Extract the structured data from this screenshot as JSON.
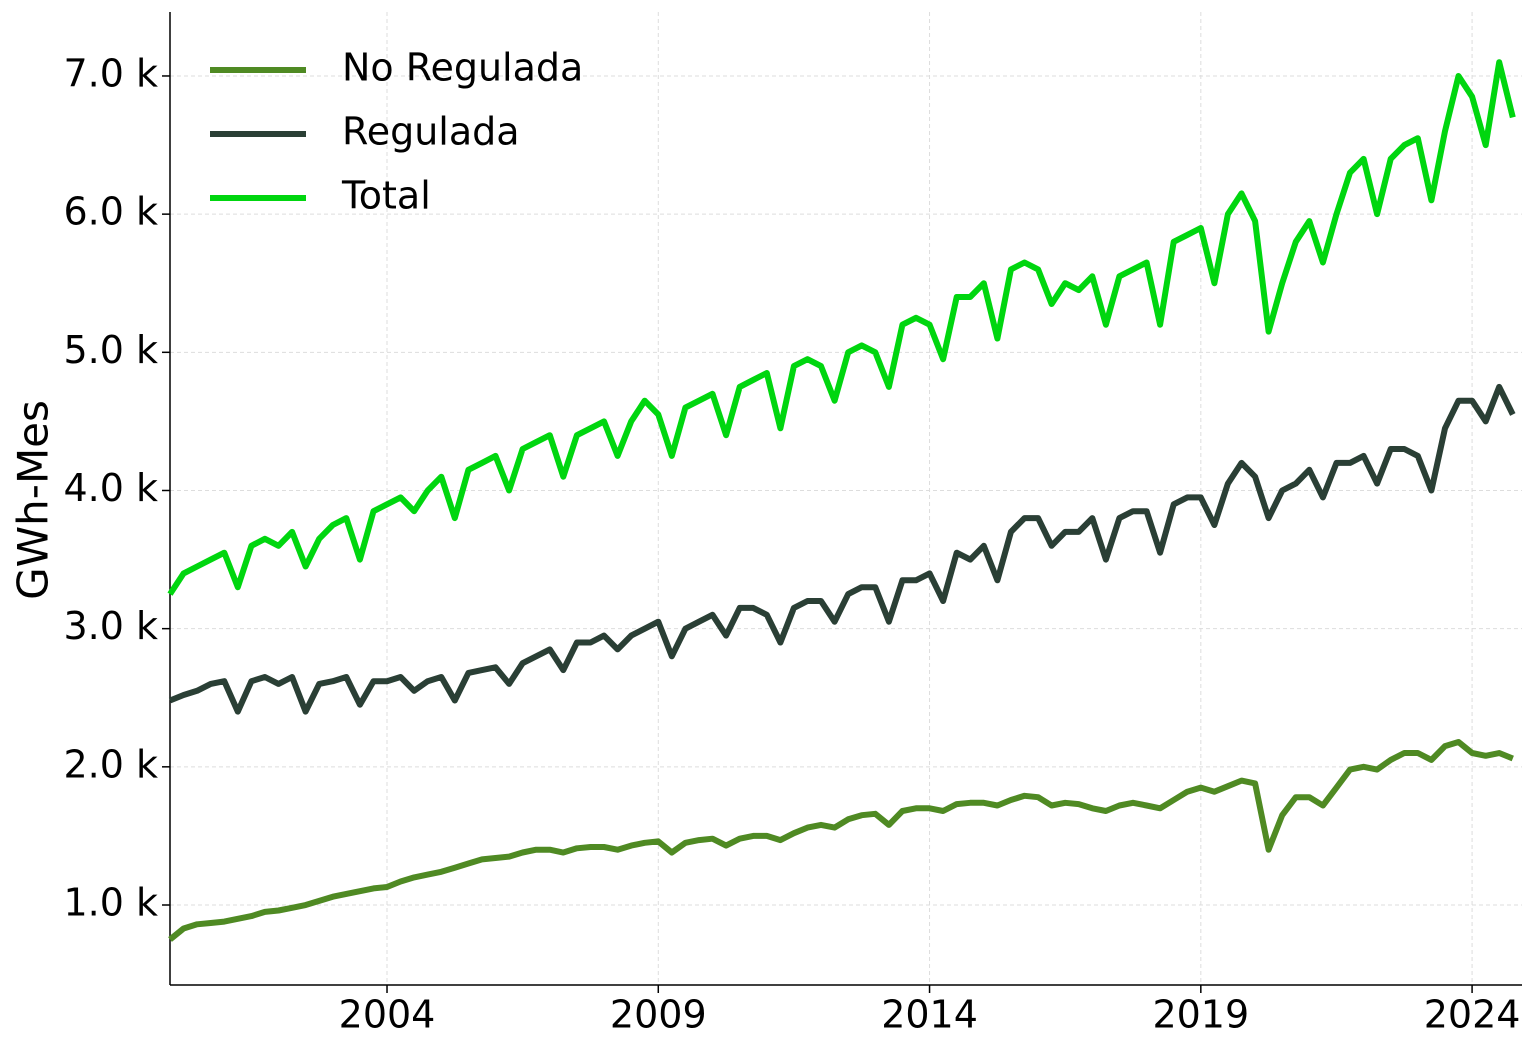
{
  "chart_data": {
    "type": "line",
    "ylabel": "GWh-Mes",
    "x": [
      2000,
      2000.25,
      2000.5,
      2000.75,
      2001,
      2001.25,
      2001.5,
      2001.75,
      2002,
      2002.25,
      2002.5,
      2002.75,
      2003,
      2003.25,
      2003.5,
      2003.75,
      2004,
      2004.25,
      2004.5,
      2004.75,
      2005,
      2005.25,
      2005.5,
      2005.75,
      2006,
      2006.25,
      2006.5,
      2006.75,
      2007,
      2007.25,
      2007.5,
      2007.75,
      2008,
      2008.25,
      2008.5,
      2008.75,
      2009,
      2009.25,
      2009.5,
      2009.75,
      2010,
      2010.25,
      2010.5,
      2010.75,
      2011,
      2011.25,
      2011.5,
      2011.75,
      2012,
      2012.25,
      2012.5,
      2012.75,
      2013,
      2013.25,
      2013.5,
      2013.75,
      2014,
      2014.25,
      2014.5,
      2014.75,
      2015,
      2015.25,
      2015.5,
      2015.75,
      2016,
      2016.25,
      2016.5,
      2016.75,
      2017,
      2017.25,
      2017.5,
      2017.75,
      2018,
      2018.25,
      2018.5,
      2018.75,
      2019,
      2019.25,
      2019.5,
      2019.75,
      2020,
      2020.25,
      2020.5,
      2020.75,
      2021,
      2021.25,
      2021.5,
      2021.75,
      2022,
      2022.25,
      2022.5,
      2022.75,
      2023,
      2023.25,
      2023.5,
      2023.75,
      2024,
      2024.25,
      2024.5,
      2024.75
    ],
    "series": [
      {
        "name": "No Regulada",
        "color": "#4f8a23",
        "values": [
          750,
          830,
          860,
          870,
          880,
          900,
          920,
          950,
          960,
          980,
          1000,
          1030,
          1060,
          1080,
          1100,
          1120,
          1130,
          1170,
          1200,
          1220,
          1240,
          1270,
          1300,
          1330,
          1340,
          1350,
          1380,
          1400,
          1400,
          1380,
          1410,
          1420,
          1420,
          1400,
          1430,
          1450,
          1460,
          1380,
          1450,
          1470,
          1480,
          1430,
          1480,
          1500,
          1500,
          1470,
          1520,
          1560,
          1580,
          1560,
          1620,
          1650,
          1660,
          1580,
          1680,
          1700,
          1700,
          1680,
          1730,
          1740,
          1740,
          1720,
          1760,
          1790,
          1780,
          1720,
          1740,
          1730,
          1700,
          1680,
          1720,
          1740,
          1720,
          1700,
          1760,
          1820,
          1850,
          1820,
          1860,
          1900,
          1880,
          1400,
          1650,
          1780,
          1780,
          1720,
          1850,
          1980,
          2000,
          1980,
          2050,
          2100,
          2100,
          2050,
          2150,
          2180,
          2100,
          2080,
          2100,
          2060
        ]
      },
      {
        "name": "Regulada",
        "color": "#2a3f35",
        "values": [
          2480,
          2520,
          2550,
          2600,
          2620,
          2400,
          2620,
          2650,
          2600,
          2650,
          2400,
          2600,
          2620,
          2650,
          2450,
          2620,
          2620,
          2650,
          2550,
          2620,
          2650,
          2480,
          2680,
          2700,
          2720,
          2600,
          2750,
          2800,
          2850,
          2700,
          2900,
          2900,
          2950,
          2850,
          2950,
          3000,
          3050,
          2800,
          3000,
          3050,
          3100,
          2950,
          3150,
          3150,
          3100,
          2900,
          3150,
          3200,
          3200,
          3050,
          3250,
          3300,
          3300,
          3050,
          3350,
          3350,
          3400,
          3200,
          3550,
          3500,
          3600,
          3350,
          3700,
          3800,
          3800,
          3600,
          3700,
          3700,
          3800,
          3500,
          3800,
          3850,
          3850,
          3550,
          3900,
          3950,
          3950,
          3750,
          4050,
          4200,
          4100,
          3800,
          4000,
          4050,
          4150,
          3950,
          4200,
          4200,
          4250,
          4050,
          4300,
          4300,
          4250,
          4000,
          4450,
          4650,
          4650,
          4500,
          4750,
          4550
        ]
      },
      {
        "name": "Total",
        "color": "#00d60f",
        "values": [
          3250,
          3400,
          3450,
          3500,
          3550,
          3300,
          3600,
          3650,
          3600,
          3700,
          3450,
          3650,
          3750,
          3800,
          3500,
          3850,
          3900,
          3950,
          3850,
          4000,
          4100,
          3800,
          4150,
          4200,
          4250,
          4000,
          4300,
          4350,
          4400,
          4100,
          4400,
          4450,
          4500,
          4250,
          4500,
          4650,
          4550,
          4250,
          4600,
          4650,
          4700,
          4400,
          4750,
          4800,
          4850,
          4450,
          4900,
          4950,
          4900,
          4650,
          5000,
          5050,
          5000,
          4750,
          5200,
          5250,
          5200,
          4950,
          5400,
          5400,
          5500,
          5100,
          5600,
          5650,
          5600,
          5350,
          5500,
          5450,
          5550,
          5200,
          5550,
          5600,
          5650,
          5200,
          5800,
          5850,
          5900,
          5500,
          6000,
          6150,
          5950,
          5150,
          5500,
          5800,
          5950,
          5650,
          6000,
          6300,
          6400,
          6000,
          6400,
          6500,
          6550,
          6100,
          6600,
          7000,
          6850,
          6500,
          7100,
          6700
        ]
      }
    ],
    "xlim": [
      2000,
      2024.92
    ],
    "xticks": [
      2004,
      2009,
      2014,
      2019,
      2024
    ],
    "ylim": [
      421,
      7463
    ],
    "yticks": [
      {
        "value": 1000,
        "label": "1.0 k"
      },
      {
        "value": 2000,
        "label": "2.0 k"
      },
      {
        "value": 3000,
        "label": "3.0 k"
      },
      {
        "value": 4000,
        "label": "4.0 k"
      },
      {
        "value": 5000,
        "label": "5.0 k"
      },
      {
        "value": 6000,
        "label": "6.0 k"
      },
      {
        "value": 7000,
        "label": "7.0 k"
      }
    ],
    "grid": true,
    "legend": "upper left"
  }
}
